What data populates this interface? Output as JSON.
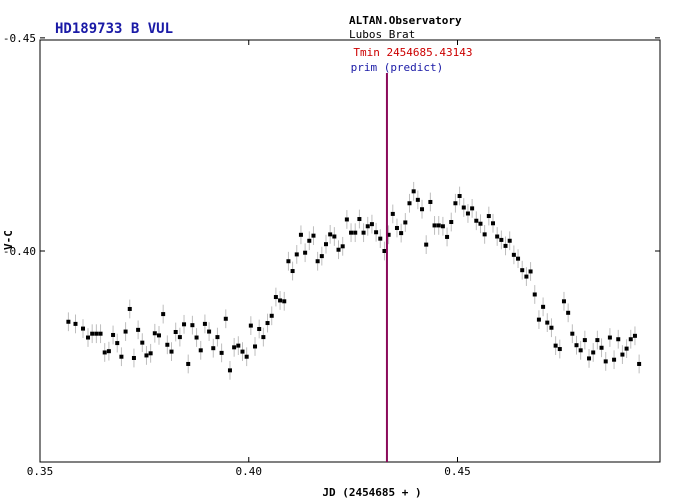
{
  "chart_data": {
    "type": "scatter",
    "title": "HD189733 B VUL",
    "observatory": "ALTAN.Observatory",
    "observer": "Lubos Brat",
    "xlabel": "JD (2454685 + )",
    "ylabel": "V-C",
    "xlim": [
      0.35,
      0.4985
    ],
    "ylim": [
      -0.4495,
      -0.3505
    ],
    "y_reversed": true,
    "grid": false,
    "x_ticks": [
      0.35,
      0.4,
      0.45
    ],
    "x_tick_labels": [
      "0.35",
      "0.40",
      "0.45"
    ],
    "y_ticks": [
      -0.45,
      -0.4
    ],
    "y_tick_labels": [
      "-0.45",
      "-0.40"
    ],
    "vline": {
      "x": 0.4331,
      "label1": "Tmin 2454685.43143",
      "label2": "prim (predict)",
      "color": "#8b0a5a"
    },
    "error_bar": 0.0022,
    "colors": {
      "points": "#000000",
      "errorbars": "#bdbdbd",
      "title": "#1a1aa6",
      "tmin": "#cc0000"
    },
    "series": [
      {
        "x": [
          0.3568,
          0.3585,
          0.3603,
          0.3615,
          0.3625,
          0.3635,
          0.3645,
          0.3655,
          0.3665,
          0.3675,
          0.3685,
          0.3695,
          0.3705,
          0.3715,
          0.3725,
          0.3735,
          0.3745,
          0.3755,
          0.3765,
          0.3775,
          0.3785,
          0.3795,
          0.3805,
          0.3815,
          0.3825,
          0.3835,
          0.3845,
          0.3855,
          0.3865,
          0.3875,
          0.3885,
          0.3895,
          0.3905,
          0.3915,
          0.3925,
          0.3935,
          0.3945,
          0.3955,
          0.3965,
          0.3975,
          0.3985,
          0.3995,
          0.4005,
          0.4015,
          0.4025,
          0.4035,
          0.4045,
          0.4055,
          0.4065,
          0.4075,
          0.4085,
          0.4095,
          0.4105,
          0.4115,
          0.4125,
          0.4135,
          0.4145,
          0.4155,
          0.4165,
          0.4175,
          0.4185,
          0.4195,
          0.4205,
          0.4215,
          0.4225,
          0.4235,
          0.4245,
          0.4255,
          0.4265,
          0.4275,
          0.4285,
          0.4295,
          0.4305,
          0.4315,
          0.4325,
          0.4335,
          0.4345,
          0.4355,
          0.4365,
          0.4375,
          0.4385,
          0.4395,
          0.4405,
          0.4415,
          0.4425,
          0.4435,
          0.4445,
          0.4455,
          0.4465,
          0.4475,
          0.4485,
          0.4495,
          0.4505,
          0.4515,
          0.4525,
          0.4535,
          0.4545,
          0.4555,
          0.4565,
          0.4575,
          0.4585,
          0.4595,
          0.4605,
          0.4615,
          0.4625,
          0.4635,
          0.4645,
          0.4655,
          0.4665,
          0.4675,
          0.4685,
          0.4695,
          0.4705,
          0.4715,
          0.4725,
          0.4735,
          0.4745,
          0.4755,
          0.4765,
          0.4775,
          0.4785,
          0.4795,
          0.4805,
          0.4815,
          0.4825,
          0.4835,
          0.4845,
          0.4855,
          0.4865,
          0.4875,
          0.4885,
          0.4895,
          0.4905,
          0.4915,
          0.4925,
          0.4935
        ],
        "y": [
          -0.3834,
          -0.3829,
          -0.3818,
          -0.3797,
          -0.3806,
          -0.3806,
          -0.3806,
          -0.3762,
          -0.3765,
          -0.3803,
          -0.3784,
          -0.3752,
          -0.3811,
          -0.3864,
          -0.3749,
          -0.3815,
          -0.3785,
          -0.3755,
          -0.376,
          -0.3807,
          -0.3802,
          -0.3852,
          -0.378,
          -0.3764,
          -0.381,
          -0.3798,
          -0.3828,
          -0.3735,
          -0.3826,
          -0.3797,
          -0.3767,
          -0.3829,
          -0.3811,
          -0.3772,
          -0.3798,
          -0.3761,
          -0.3841,
          -0.372,
          -0.3774,
          -0.3778,
          -0.3764,
          -0.3752,
          -0.3825,
          -0.3776,
          -0.3817,
          -0.3798,
          -0.3831,
          -0.3848,
          -0.3892,
          -0.3884,
          -0.3882,
          -0.3976,
          -0.3953,
          -0.3992,
          -0.4038,
          -0.3996,
          -0.4024,
          -0.4036,
          -0.3976,
          -0.3988,
          -0.4016,
          -0.4039,
          -0.4034,
          -0.4003,
          -0.4011,
          -0.4074,
          -0.4043,
          -0.4043,
          -0.4075,
          -0.4043,
          -0.4058,
          -0.4063,
          -0.4044,
          -0.4029,
          -0.4,
          -0.4038,
          -0.4087,
          -0.4054,
          -0.4042,
          -0.4067,
          -0.4112,
          -0.414,
          -0.412,
          -0.4098,
          -0.4015,
          -0.4115,
          -0.406,
          -0.406,
          -0.4058,
          -0.4033,
          -0.4068,
          -0.4112,
          -0.4129,
          -0.4102,
          -0.4088,
          -0.41,
          -0.4071,
          -0.4064,
          -0.4039,
          -0.4082,
          -0.4065,
          -0.4034,
          -0.4026,
          -0.4012,
          -0.4024,
          -0.3991,
          -0.3982,
          -0.3955,
          -0.394,
          -0.3952,
          -0.3898,
          -0.3839,
          -0.3869,
          -0.3832,
          -0.382,
          -0.3778,
          -0.377,
          -0.3882,
          -0.3855,
          -0.3806,
          -0.3779,
          -0.3767,
          -0.3791,
          -0.3748,
          -0.3762,
          -0.3791,
          -0.3773,
          -0.3741,
          -0.3797,
          -0.3745,
          -0.3793,
          -0.3757,
          -0.3771,
          -0.3793,
          -0.3801,
          -0.3735
        ]
      }
    ]
  }
}
